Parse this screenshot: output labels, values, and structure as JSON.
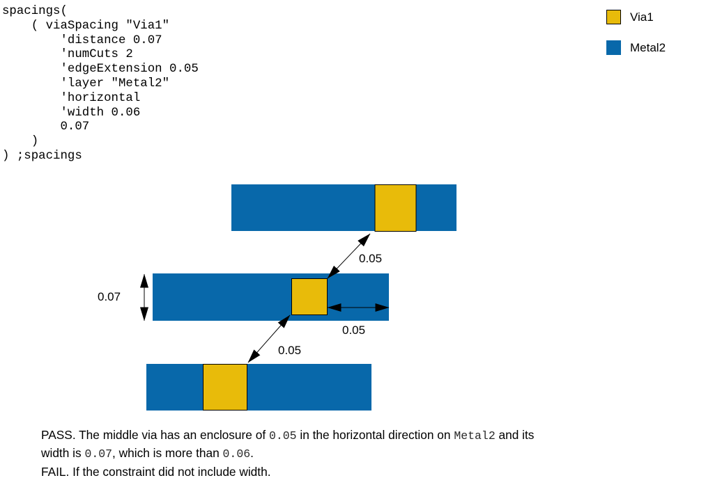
{
  "code": {
    "lines": [
      "spacings(",
      "    ( viaSpacing \"Via1\"",
      "        'distance 0.07",
      "        'numCuts 2",
      "        'edgeExtension 0.05",
      "        'layer \"Metal2\"",
      "        'horizontal",
      "        'width 0.06",
      "        0.07",
      "    )",
      ") ;spacings"
    ]
  },
  "legend": {
    "items": [
      {
        "label": "Via1",
        "color": "#e8bb0a"
      },
      {
        "label": "Metal2",
        "color": "#0868aa"
      }
    ]
  },
  "diagram": {
    "colors": {
      "metal": "#0868aa",
      "via": "#e8bb0a",
      "arrow": "#000000"
    },
    "labels": {
      "top_spacing": "0.05",
      "width": "0.07",
      "enclosure": "0.05",
      "bottom_spacing": "0.05"
    }
  },
  "caption": {
    "line1_a": "PASS. The middle via has an enclosure of ",
    "line1_code1": "0.05",
    "line1_b": " in the horizontal direction on ",
    "line1_code2": "Metal2",
    "line1_c": " and its",
    "line2_a": "width is ",
    "line2_code1": "0.07",
    "line2_b": ", which is more than ",
    "line2_code2": "0.06",
    "line2_c": ".",
    "line3": "FAIL. If the constraint did not include width."
  }
}
